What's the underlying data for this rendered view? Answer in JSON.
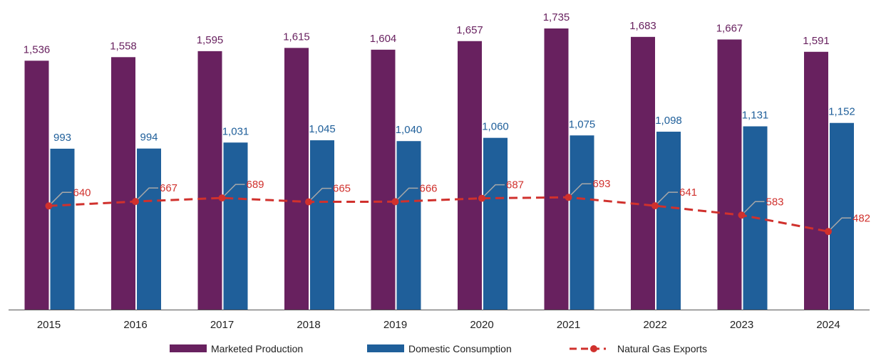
{
  "chart_data": {
    "type": "bar",
    "title": "",
    "xlabel": "",
    "ylabel": "",
    "categories": [
      "2015",
      "2016",
      "2017",
      "2018",
      "2019",
      "2020",
      "2021",
      "2022",
      "2023",
      "2024"
    ],
    "ylim": [
      0,
      1735
    ],
    "series": [
      {
        "name": "Marketed Production",
        "type": "bar",
        "color": "#68215f",
        "values": [
          1536,
          1558,
          1595,
          1615,
          1604,
          1657,
          1735,
          1683,
          1667,
          1591
        ],
        "labels": [
          "1,536",
          "1,558",
          "1,595",
          "1,615",
          "1,604",
          "1,657",
          "1,735",
          "1,683",
          "1,667",
          "1,591"
        ]
      },
      {
        "name": "Domestic Consumption",
        "type": "bar",
        "color": "#1f5f9a",
        "values": [
          993,
          994,
          1031,
          1045,
          1040,
          1060,
          1075,
          1098,
          1131,
          1152
        ],
        "labels": [
          "993",
          "994",
          "1,031",
          "1,045",
          "1,040",
          "1,060",
          "1,075",
          "1,098",
          "1,131",
          "1,152"
        ]
      },
      {
        "name": "Natural Gas Exports",
        "type": "line",
        "style": "dashed",
        "color": "#d0312d",
        "values": [
          640,
          667,
          689,
          665,
          666,
          687,
          693,
          641,
          583,
          482
        ],
        "labels": [
          "640",
          "667",
          "689",
          "665",
          "666",
          "687",
          "693",
          "641",
          "583",
          "482"
        ]
      }
    ],
    "grid": false,
    "legend": "bottom"
  }
}
